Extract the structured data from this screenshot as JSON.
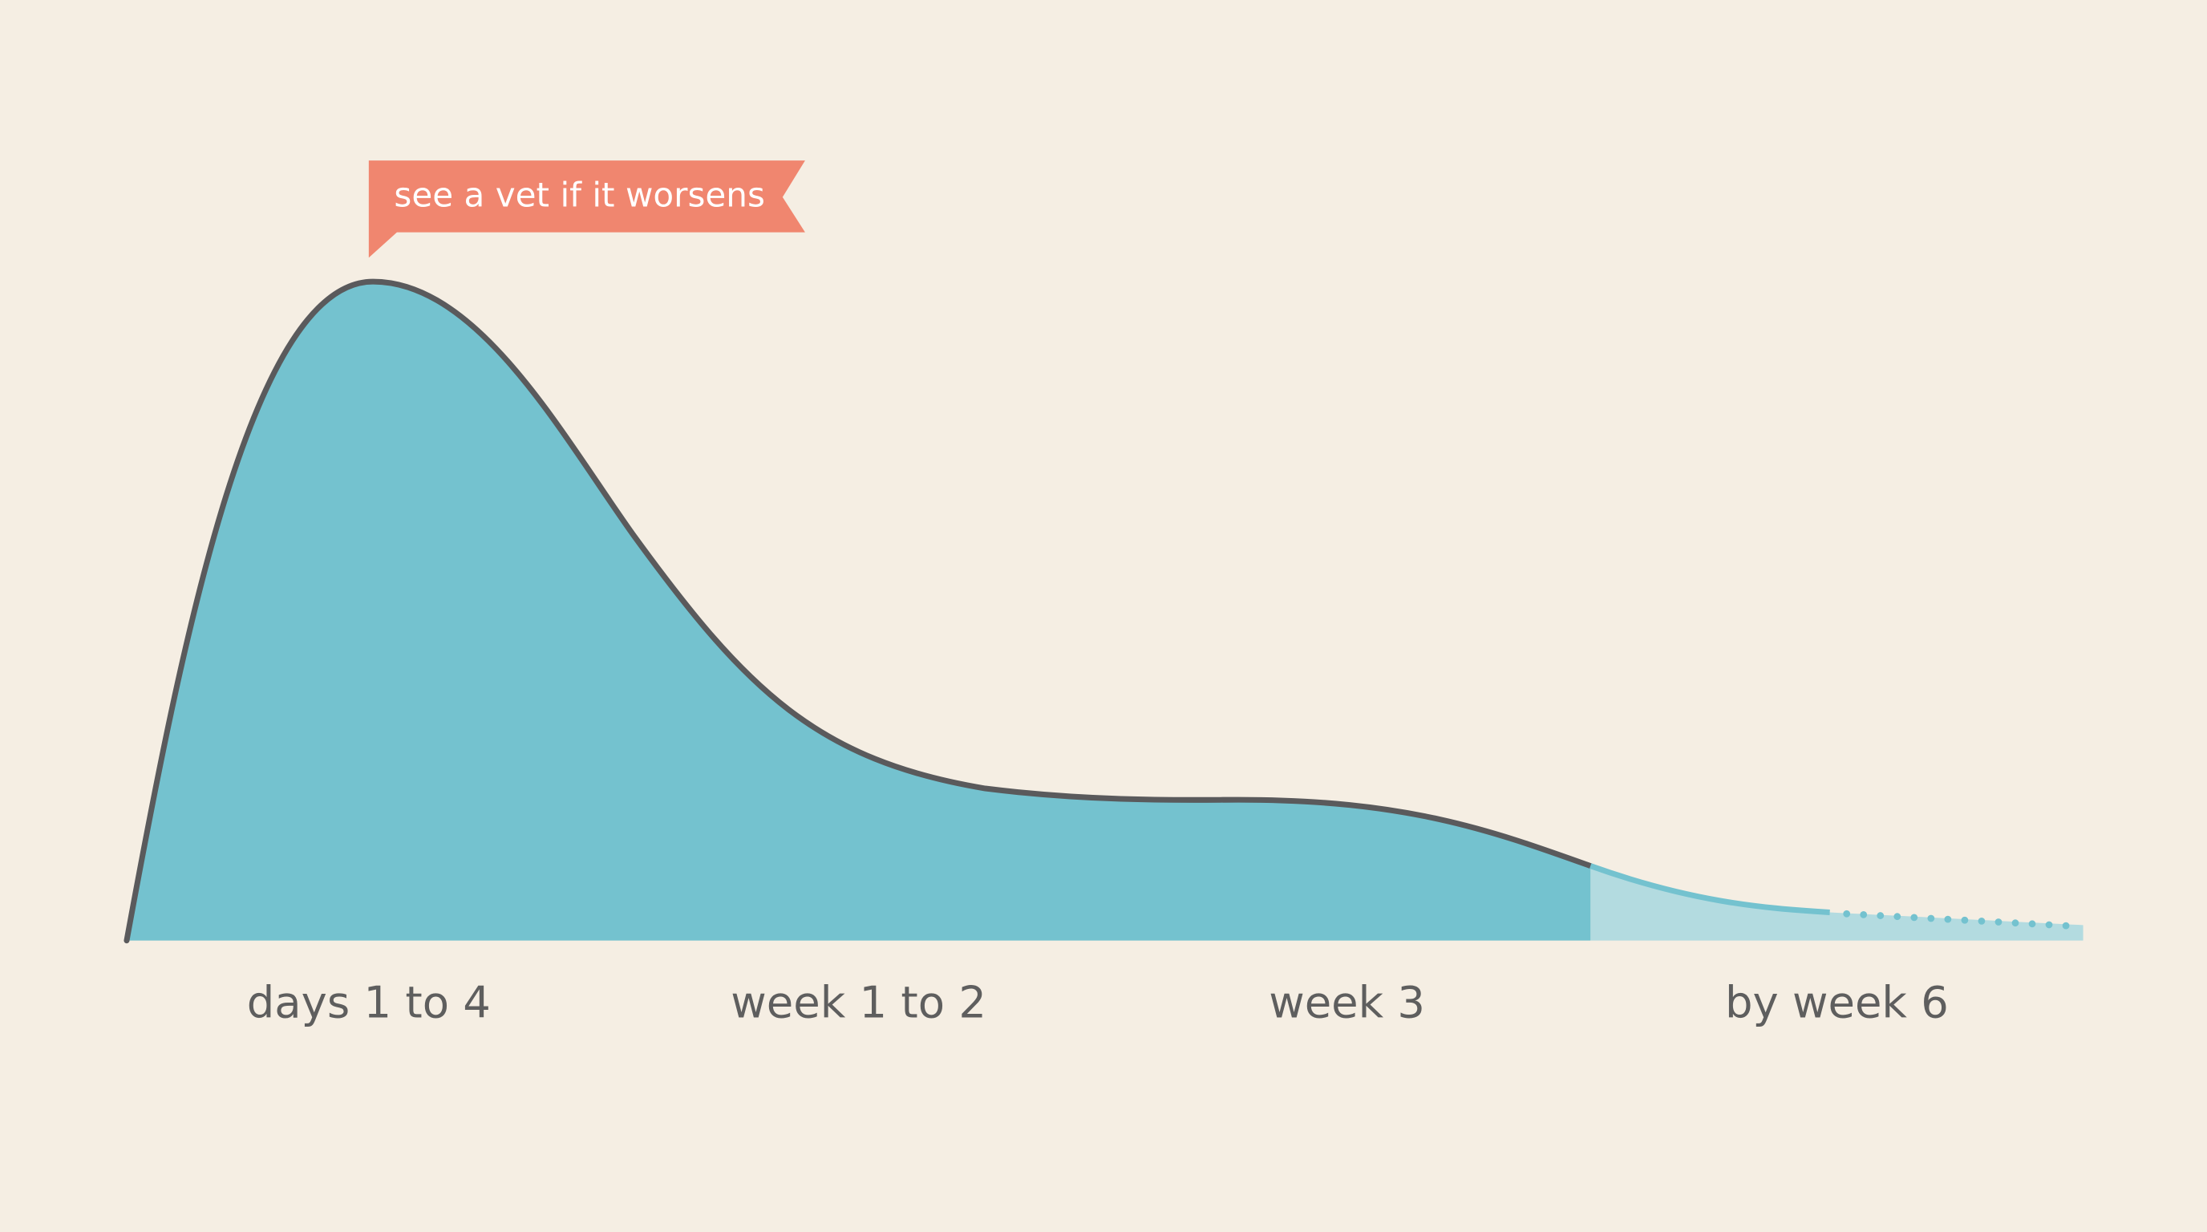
{
  "annotation": "see a vet if it worsens",
  "labels": [
    "days 1 to 4",
    "week 1 to 2",
    "week 3",
    "by week 6"
  ]
}
